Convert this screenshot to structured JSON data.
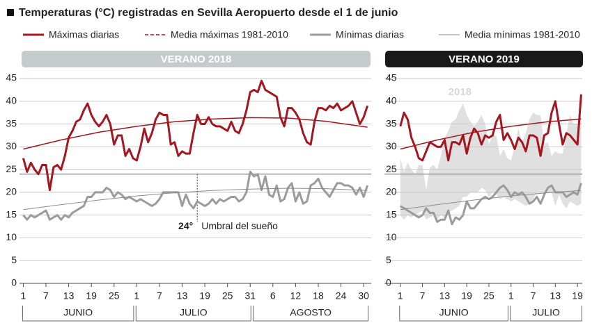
{
  "chart_data": [
    {
      "type": "line",
      "title": "Temperaturas (°C) registradas en Sevilla Aeropuerto desde el 1 de junio",
      "panel_title": "VERANO 2018",
      "panel_color": "#c5cacd",
      "xlim": [
        0,
        93
      ],
      "ylim": [
        0,
        45
      ],
      "yticks": [
        0,
        5,
        10,
        15,
        20,
        25,
        30,
        35,
        40,
        45
      ],
      "grid": true,
      "xticks": [
        1,
        7,
        13,
        19,
        25,
        {
          "value": 31,
          "label": "1"
        },
        {
          "value": 37,
          "label": "7"
        },
        {
          "value": 43,
          "label": "13"
        },
        {
          "value": 49,
          "label": "19"
        },
        {
          "value": 55,
          "label": "25"
        },
        {
          "value": 61,
          "label": "31"
        },
        {
          "value": 67,
          "label": "6"
        },
        {
          "value": 73,
          "label": "12"
        },
        {
          "value": 79,
          "label": "18"
        },
        {
          "value": 85,
          "label": "24"
        },
        {
          "value": 91,
          "label": "30"
        }
      ],
      "months": [
        {
          "label": "JUNIO",
          "start": 1,
          "end": 30
        },
        {
          "label": "JULIO",
          "start": 31,
          "end": 61
        },
        {
          "label": "AGOSTO",
          "start": 62,
          "end": 92
        }
      ],
      "threshold": {
        "value": 24,
        "label": "24°",
        "text": "Umbral del sueño",
        "x": 47
      },
      "x": [
        1,
        2,
        3,
        4,
        5,
        6,
        7,
        8,
        9,
        10,
        11,
        12,
        13,
        14,
        15,
        16,
        17,
        18,
        19,
        20,
        21,
        22,
        23,
        24,
        25,
        26,
        27,
        28,
        29,
        30,
        31,
        32,
        33,
        34,
        35,
        36,
        37,
        38,
        39,
        40,
        41,
        42,
        43,
        44,
        45,
        46,
        47,
        48,
        49,
        50,
        51,
        52,
        53,
        54,
        55,
        56,
        57,
        58,
        59,
        60,
        61,
        62,
        63,
        64,
        65,
        66,
        67,
        68,
        69,
        70,
        71,
        72,
        73,
        74,
        75,
        76,
        77,
        78,
        79,
        80,
        81,
        82,
        83,
        84,
        85,
        86,
        87,
        88,
        89,
        90,
        91,
        92
      ],
      "series": [
        {
          "name": "Máximas diarias",
          "color": "#a3161f",
          "width": 3,
          "values": [
            27.5,
            24.5,
            26.5,
            25,
            24,
            26,
            26,
            20.5,
            25.5,
            26,
            25,
            28,
            32,
            33.5,
            35.5,
            36,
            38,
            39.5,
            37,
            35.5,
            34.5,
            35.5,
            37,
            35,
            30.5,
            32.5,
            32.5,
            28,
            29.5,
            27.5,
            27,
            30,
            34,
            31,
            33,
            36,
            37.5,
            37,
            37,
            30.5,
            31,
            28,
            29,
            28.5,
            28.5,
            33,
            37,
            35,
            35,
            36.5,
            35,
            34.5,
            34.5,
            34,
            33.5,
            35.5,
            33.5,
            33,
            35,
            38,
            42,
            42.5,
            42,
            44.5,
            42.5,
            42,
            41.5,
            41,
            36.5,
            34.5,
            38.5,
            38.5,
            37.5,
            36,
            33,
            31,
            30.5,
            35.5,
            38.5,
            38.5,
            38,
            39,
            38.5,
            39.5,
            38,
            38.5,
            39,
            40,
            37.5,
            35,
            36.5,
            39
          ]
        },
        {
          "name": "Media máximas 1981-2010",
          "color": "#a3161f",
          "width": 1.5,
          "legend_dash": true,
          "x": [
            1,
            11,
            21,
            31,
            41,
            51,
            61,
            71,
            81,
            92
          ],
          "values": [
            29.5,
            31.5,
            33.2,
            34.5,
            35.5,
            36.1,
            36.4,
            36.3,
            35.6,
            34.3
          ]
        },
        {
          "name": "Mínimas diarias",
          "color": "#9b9b9b",
          "width": 3,
          "values": [
            15,
            14,
            15,
            14.5,
            15,
            15.5,
            16,
            14,
            14.5,
            15,
            14,
            15,
            14.5,
            15.5,
            16,
            16.5,
            17,
            19,
            19,
            20,
            20,
            20,
            21,
            20.5,
            19,
            20,
            19.5,
            18.5,
            19,
            18.5,
            18,
            18.5,
            18,
            17.5,
            17,
            17.5,
            18.5,
            20,
            20,
            20,
            20,
            20,
            17,
            19.5,
            17.5,
            16.5,
            18,
            17.5,
            17,
            17.5,
            18.5,
            17.5,
            18.5,
            18,
            18.5,
            19,
            19,
            18,
            18.5,
            20,
            24.5,
            23.5,
            24,
            20.5,
            23.5,
            19.5,
            19,
            21.5,
            18,
            18.5,
            21,
            22,
            18,
            20,
            17.5,
            18,
            21.5,
            22,
            23,
            21,
            20,
            19,
            20.5,
            22,
            22,
            21.5,
            21.5,
            21,
            19.5,
            21,
            19,
            21.5
          ]
        },
        {
          "name": "Media mínimas 1981-2010",
          "color": "#8c8c8c",
          "width": 1,
          "x": [
            1,
            11,
            21,
            31,
            41,
            51,
            61,
            71,
            81,
            92
          ],
          "values": [
            16.2,
            17.3,
            18.3,
            19.2,
            19.9,
            20.4,
            20.7,
            20.9,
            20.8,
            20.4
          ]
        }
      ]
    },
    {
      "type": "line",
      "panel_title": "VERANO 2019",
      "panel_color": "#1a1a1a",
      "band_label": "2018",
      "xlim": [
        -3.3,
        50.3
      ],
      "ylim": [
        0,
        45
      ],
      "yticks": [
        0,
        5,
        10,
        15,
        20,
        25,
        30,
        35,
        40,
        45
      ],
      "grid": true,
      "xticks": [
        1,
        7,
        13,
        19,
        25,
        {
          "value": 31,
          "label": "1"
        },
        {
          "value": 37,
          "label": "7"
        },
        {
          "value": 43,
          "label": "13"
        },
        {
          "value": 49,
          "label": "19"
        }
      ],
      "months": [
        {
          "label": "JUNIO",
          "start": 1,
          "end": 30
        },
        {
          "label": "JULIO",
          "start": 31,
          "end": 50
        }
      ],
      "threshold": {
        "value": 24
      },
      "x": [
        1,
        2,
        3,
        4,
        5,
        6,
        7,
        8,
        9,
        10,
        11,
        12,
        13,
        14,
        15,
        16,
        17,
        18,
        19,
        20,
        21,
        22,
        23,
        24,
        25,
        26,
        27,
        28,
        29,
        30,
        31,
        32,
        33,
        34,
        35,
        36,
        37,
        38,
        39,
        40,
        41,
        42,
        43,
        44,
        45,
        46,
        47,
        48,
        49,
        50
      ],
      "series": [
        {
          "color": "#a3161f",
          "width": 3,
          "values": [
            34.5,
            37.5,
            36,
            32,
            30,
            27.5,
            27,
            29,
            31,
            30.5,
            30,
            30,
            31.5,
            27,
            31,
            31,
            30.5,
            32.5,
            28.5,
            32,
            34,
            33,
            30.5,
            32.5,
            32,
            32.5,
            35.5,
            37,
            31.5,
            33,
            31.5,
            29.5,
            32,
            31,
            29,
            32.5,
            32.5,
            32,
            28,
            32.5,
            33,
            37.5,
            40,
            35,
            30.5,
            33,
            32.5,
            31.5,
            30.5,
            41.5
          ]
        },
        {
          "color": "#a3161f",
          "width": 1.5,
          "x": [
            1,
            11,
            21,
            31,
            41,
            50
          ],
          "values": [
            29.5,
            31.5,
            33.2,
            34.5,
            35.5,
            36.1
          ]
        },
        {
          "color": "#9b9b9b",
          "width": 3,
          "values": [
            17,
            16.5,
            16,
            15.5,
            15,
            14.5,
            15,
            16.5,
            15.5,
            15.5,
            13.5,
            14,
            14,
            16,
            13,
            14.5,
            14,
            15,
            18,
            16.5,
            16.5,
            17.5,
            18.5,
            19,
            18.5,
            19,
            20,
            21,
            21.5,
            20.5,
            19,
            20,
            19.5,
            20,
            19,
            17.5,
            18,
            19,
            17.5,
            19.5,
            21,
            21.5,
            20,
            20,
            20,
            19,
            19.5,
            20,
            19.5,
            22
          ]
        },
        {
          "color": "#8c8c8c",
          "width": 1,
          "x": [
            1,
            11,
            21,
            31,
            41,
            50
          ],
          "values": [
            16.2,
            17.3,
            18.3,
            19.2,
            19.9,
            20.4
          ]
        }
      ]
    }
  ]
}
